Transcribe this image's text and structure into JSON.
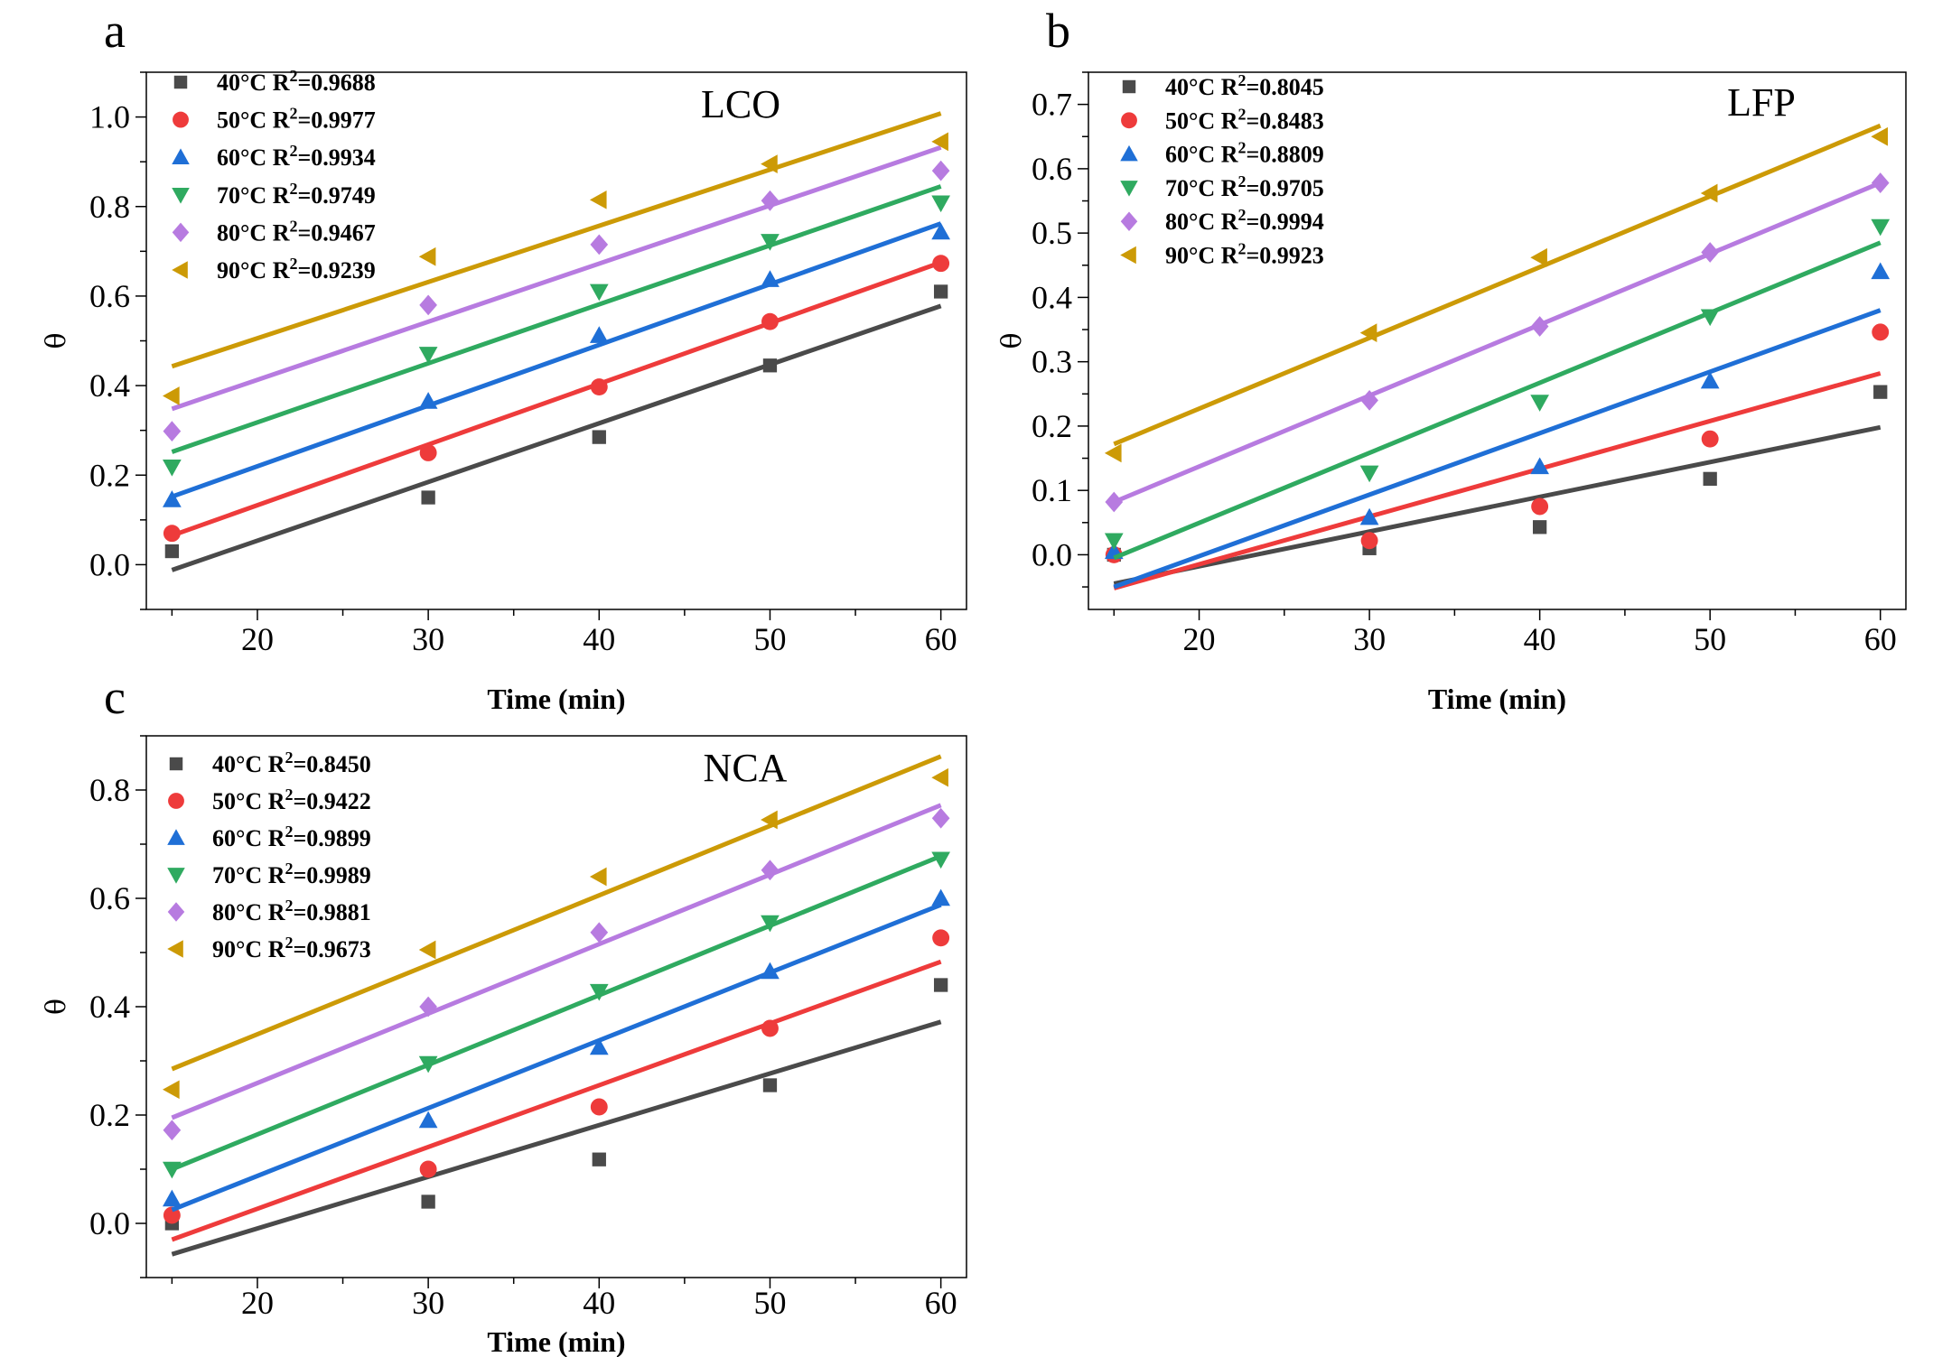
{
  "chart_data": [
    {
      "type": "scatter",
      "panel_label": "a",
      "panel_name": "LCO",
      "xlabel": "Time (min)",
      "ylabel": "θ",
      "xlim": [
        13.5,
        61.5
      ],
      "ylim": [
        -0.1,
        1.1
      ],
      "xticks": [
        20,
        30,
        40,
        50,
        60
      ],
      "yticks": [
        0.0,
        0.2,
        0.4,
        0.6,
        0.8,
        1.0
      ],
      "x": [
        15,
        30,
        40,
        50,
        60
      ],
      "legend_position": "top-left",
      "series": [
        {
          "name": "40°C",
          "r2": "0.9688",
          "marker": "square",
          "color": "#4a4a4a",
          "values": [
            0.03,
            0.15,
            0.285,
            0.445,
            0.61
          ],
          "fit": [
            -0.012,
            0.578
          ]
        },
        {
          "name": "50°C",
          "r2": "0.9977",
          "marker": "circle",
          "color": "#ee3b3b",
          "values": [
            0.07,
            0.25,
            0.397,
            0.543,
            0.673
          ],
          "fit": [
            0.065,
            0.675
          ]
        },
        {
          "name": "60°C",
          "r2": "0.9934",
          "marker": "triangle-up",
          "color": "#1f6fd6",
          "values": [
            0.145,
            0.365,
            0.512,
            0.637,
            0.743
          ],
          "fit": [
            0.152,
            0.762
          ]
        },
        {
          "name": "70°C",
          "r2": "0.9749",
          "marker": "triangle-down",
          "color": "#2faa60",
          "values": [
            0.218,
            0.47,
            0.61,
            0.722,
            0.808
          ],
          "fit": [
            0.252,
            0.845
          ]
        },
        {
          "name": "80°C",
          "r2": "0.9467",
          "marker": "diamond",
          "color": "#b77be0",
          "values": [
            0.298,
            0.58,
            0.715,
            0.813,
            0.88
          ],
          "fit": [
            0.348,
            0.932
          ]
        },
        {
          "name": "90°C",
          "r2": "0.9239",
          "marker": "triangle-left",
          "color": "#cc9a06",
          "values": [
            0.377,
            0.688,
            0.815,
            0.895,
            0.945
          ],
          "fit": [
            0.443,
            1.008
          ]
        }
      ]
    },
    {
      "type": "scatter",
      "panel_label": "b",
      "panel_name": "LFP",
      "xlabel": "Time (min)",
      "ylabel": "θ",
      "xlim": [
        13.5,
        61.5
      ],
      "ylim": [
        -0.085,
        0.75
      ],
      "xticks": [
        20,
        30,
        40,
        50,
        60
      ],
      "yticks": [
        0.0,
        0.1,
        0.2,
        0.3,
        0.4,
        0.5,
        0.6,
        0.7
      ],
      "x": [
        15,
        30,
        40,
        50,
        60
      ],
      "legend_position": "top-left",
      "series": [
        {
          "name": "40°C",
          "r2": "0.8045",
          "marker": "square",
          "color": "#4a4a4a",
          "values": [
            0.0,
            0.01,
            0.043,
            0.118,
            0.253
          ],
          "fit": [
            -0.045,
            0.198
          ]
        },
        {
          "name": "50°C",
          "r2": "0.8483",
          "marker": "circle",
          "color": "#ee3b3b",
          "values": [
            0.0,
            0.022,
            0.075,
            0.18,
            0.346
          ],
          "fit": [
            -0.052,
            0.282
          ]
        },
        {
          "name": "60°C",
          "r2": "0.8809",
          "marker": "triangle-up",
          "color": "#1f6fd6",
          "values": [
            0.005,
            0.058,
            0.137,
            0.27,
            0.44
          ],
          "fit": [
            -0.05,
            0.38
          ]
        },
        {
          "name": "70°C",
          "r2": "0.9705",
          "marker": "triangle-down",
          "color": "#2faa60",
          "values": [
            0.022,
            0.127,
            0.237,
            0.37,
            0.51
          ],
          "fit": [
            -0.005,
            0.485
          ]
        },
        {
          "name": "80°C",
          "r2": "0.9994",
          "marker": "diamond",
          "color": "#b77be0",
          "values": [
            0.082,
            0.24,
            0.355,
            0.47,
            0.578
          ],
          "fit": [
            0.082,
            0.578
          ]
        },
        {
          "name": "90°C",
          "r2": "0.9923",
          "marker": "triangle-left",
          "color": "#cc9a06",
          "values": [
            0.158,
            0.345,
            0.462,
            0.562,
            0.65
          ],
          "fit": [
            0.172,
            0.667
          ]
        }
      ]
    },
    {
      "type": "scatter",
      "panel_label": "c",
      "panel_name": "NCA",
      "xlabel": "Time (min)",
      "ylabel": "θ",
      "xlim": [
        13.5,
        61.5
      ],
      "ylim": [
        -0.1,
        0.9
      ],
      "xticks": [
        20,
        30,
        40,
        50,
        60
      ],
      "yticks": [
        0.0,
        0.2,
        0.4,
        0.6,
        0.8
      ],
      "x": [
        15,
        30,
        40,
        50,
        60
      ],
      "legend_position": "top-left",
      "series": [
        {
          "name": "40°C",
          "r2": "0.8450",
          "marker": "square",
          "color": "#4a4a4a",
          "values": [
            0.0,
            0.04,
            0.118,
            0.255,
            0.44
          ],
          "fit": [
            -0.057,
            0.372
          ]
        },
        {
          "name": "50°C",
          "r2": "0.9422",
          "marker": "circle",
          "color": "#ee3b3b",
          "values": [
            0.015,
            0.1,
            0.215,
            0.36,
            0.527
          ],
          "fit": [
            -0.03,
            0.483
          ]
        },
        {
          "name": "60°C",
          "r2": "0.9899",
          "marker": "triangle-up",
          "color": "#1f6fd6",
          "values": [
            0.045,
            0.19,
            0.325,
            0.465,
            0.6
          ],
          "fit": [
            0.025,
            0.588
          ]
        },
        {
          "name": "70°C",
          "r2": "0.9989",
          "marker": "triangle-down",
          "color": "#2faa60",
          "values": [
            0.1,
            0.295,
            0.428,
            0.555,
            0.672
          ],
          "fit": [
            0.1,
            0.678
          ]
        },
        {
          "name": "80°C",
          "r2": "0.9881",
          "marker": "diamond",
          "color": "#b77be0",
          "values": [
            0.172,
            0.4,
            0.537,
            0.652,
            0.748
          ],
          "fit": [
            0.195,
            0.772
          ]
        },
        {
          "name": "90°C",
          "r2": "0.9673",
          "marker": "triangle-left",
          "color": "#cc9a06",
          "values": [
            0.247,
            0.505,
            0.64,
            0.745,
            0.823
          ],
          "fit": [
            0.285,
            0.862
          ]
        }
      ]
    }
  ]
}
